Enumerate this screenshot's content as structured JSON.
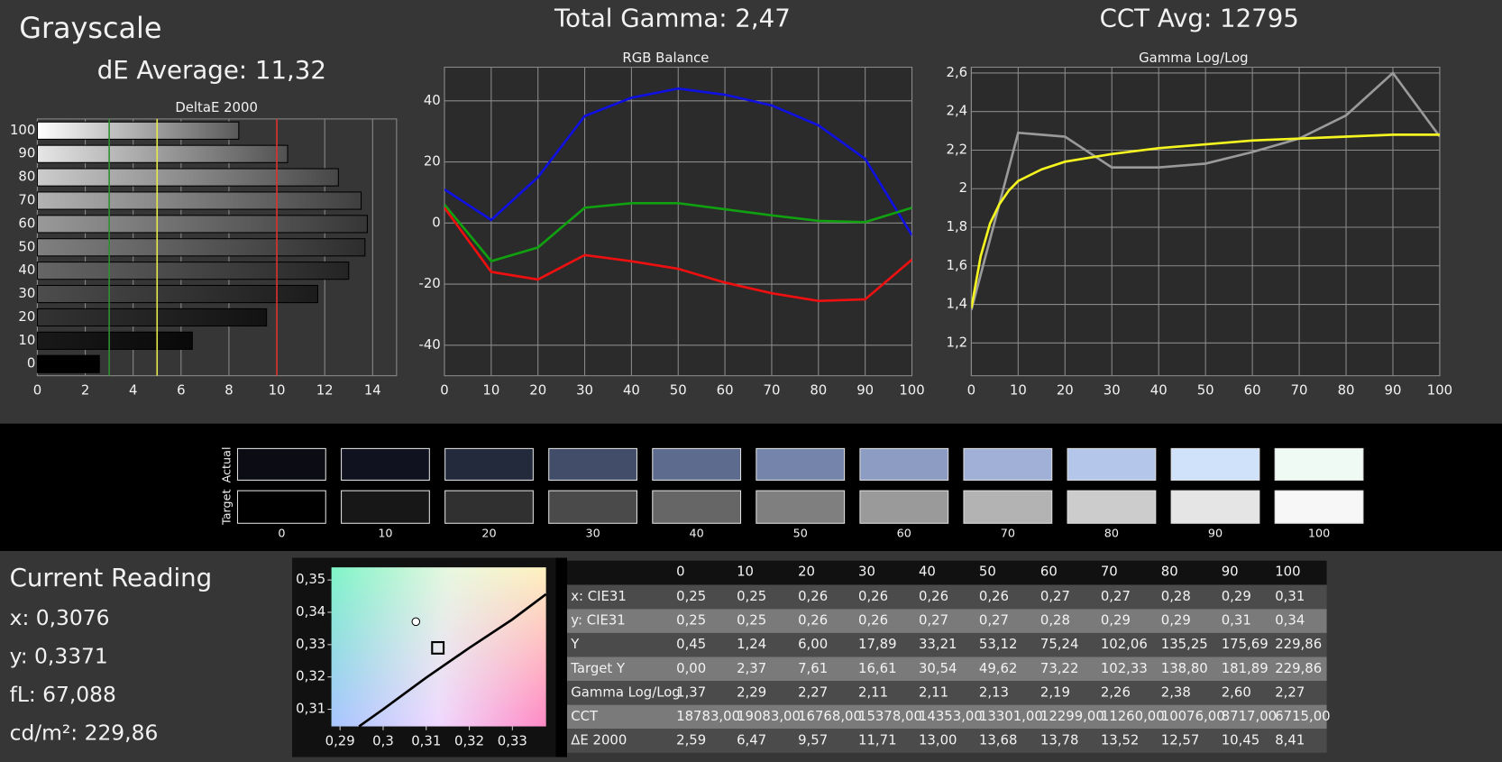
{
  "header": {
    "title": "Grayscale",
    "de_average": "dE Average: 11,32",
    "total_gamma": "Total Gamma: 2,47",
    "cct_avg": "CCT Avg: 12795"
  },
  "deltae_chart": {
    "type": "bar",
    "title": "DeltaE 2000",
    "categories": [
      "100",
      "90",
      "80",
      "70",
      "60",
      "50",
      "40",
      "30",
      "20",
      "10",
      "0"
    ],
    "values": [
      8.41,
      10.45,
      12.57,
      13.52,
      13.78,
      13.68,
      13.0,
      11.71,
      9.57,
      6.47,
      2.59
    ],
    "xlim": [
      0,
      15
    ],
    "xticks": [
      0,
      2,
      4,
      6,
      8,
      10,
      12,
      14
    ],
    "grid": true,
    "thresholds": [
      {
        "value": 3,
        "color": "#2f8f2f"
      },
      {
        "value": 5,
        "color": "#e8e84a"
      },
      {
        "value": 10,
        "color": "#e03030"
      }
    ]
  },
  "rgb_chart": {
    "type": "line",
    "title": "RGB Balance",
    "x": [
      0,
      10,
      20,
      30,
      40,
      50,
      60,
      70,
      80,
      90,
      100
    ],
    "series": [
      {
        "color": "#1010e0",
        "values": [
          11,
          1,
          15,
          35,
          41,
          44,
          42,
          38.5,
          32,
          21,
          -4
        ]
      },
      {
        "color": "#10a010",
        "values": [
          6,
          -12.5,
          -8,
          5,
          6.5,
          6.5,
          4.5,
          2.5,
          0.7,
          0.3,
          5
        ]
      },
      {
        "color": "#ee1010",
        "values": [
          5,
          -16,
          -18.5,
          -10.5,
          -12.5,
          -15,
          -19.5,
          -23,
          -25.5,
          -25,
          -12
        ]
      }
    ],
    "xlim": [
      0,
      100
    ],
    "ylim": [
      -50,
      51
    ],
    "xticks": [
      0,
      10,
      20,
      30,
      40,
      50,
      60,
      70,
      80,
      90,
      100
    ],
    "yticks": [
      -40,
      -20,
      0,
      20,
      40
    ],
    "grid": true
  },
  "gamma_chart": {
    "type": "line",
    "title": "Gamma Log/Log",
    "series": [
      {
        "color": "#9a9a9a",
        "x": [
          0,
          10,
          20,
          30,
          40,
          50,
          60,
          70,
          80,
          90,
          100
        ],
        "values": [
          1.37,
          2.29,
          2.27,
          2.11,
          2.11,
          2.13,
          2.19,
          2.26,
          2.38,
          2.6,
          2.27
        ]
      },
      {
        "color": "#f5f520",
        "x": [
          0,
          2,
          4,
          6,
          8,
          10,
          15,
          20,
          30,
          40,
          50,
          60,
          70,
          80,
          90,
          100
        ],
        "values": [
          1.38,
          1.65,
          1.82,
          1.92,
          1.99,
          2.04,
          2.1,
          2.14,
          2.18,
          2.21,
          2.23,
          2.25,
          2.26,
          2.27,
          2.28,
          2.28
        ]
      }
    ],
    "xlim": [
      0,
      100
    ],
    "ylim": [
      1.03,
      2.63
    ],
    "xticks": [
      0,
      10,
      20,
      30,
      40,
      50,
      60,
      70,
      80,
      90,
      100
    ],
    "yticks": [
      {
        "value": 1.2,
        "label": "1,2"
      },
      {
        "value": 1.4,
        "label": "1,4"
      },
      {
        "value": 1.6,
        "label": "1,6"
      },
      {
        "value": 1.8,
        "label": "1,8"
      },
      2,
      {
        "value": 2.2,
        "label": "2,2"
      },
      {
        "value": 2.4,
        "label": "2,4"
      },
      {
        "value": 2.6,
        "label": "2,6"
      }
    ],
    "grid": true
  },
  "swatches": {
    "row_labels": [
      "Actual",
      "Target"
    ],
    "columns": [
      "0",
      "10",
      "20",
      "30",
      "40",
      "50",
      "60",
      "70",
      "80",
      "90",
      "100"
    ],
    "actual_colors": [
      "#0b0c14",
      "#10131f",
      "#232a3c",
      "#414d69",
      "#5d6b8f",
      "#7484aa",
      "#8c9cc2",
      "#a0b0d6",
      "#b4c6ea",
      "#cfe2fa",
      "#eefaf3"
    ],
    "target_colors": [
      "#000000",
      "#171717",
      "#303030",
      "#4a4a4a",
      "#666666",
      "#7f7f7f",
      "#9a9a9a",
      "#b3b3b3",
      "#cccccc",
      "#e5e5e5",
      "#f7f7f7"
    ]
  },
  "current_reading": {
    "title": "Current Reading",
    "lines": [
      "x: 0,3076",
      "y: 0,3371",
      "fL: 67,088",
      "cd/m²: 229,86"
    ]
  },
  "cie_chart": {
    "type": "scatter",
    "xlim": [
      0.288,
      0.3378
    ],
    "ylim": [
      0.3047,
      0.3539
    ],
    "xticks": [
      {
        "value": 0.29,
        "label": "0,29"
      },
      {
        "value": 0.3,
        "label": "0,3"
      },
      {
        "value": 0.31,
        "label": "0,31"
      },
      {
        "value": 0.32,
        "label": "0,32"
      },
      {
        "value": 0.33,
        "label": "0,33"
      }
    ],
    "yticks": [
      {
        "value": 0.31,
        "label": "0,31"
      },
      {
        "value": 0.32,
        "label": "0,32"
      },
      {
        "value": 0.33,
        "label": "0,33"
      },
      {
        "value": 0.34,
        "label": "0,34"
      },
      {
        "value": 0.35,
        "label": "0,35"
      }
    ],
    "measured": {
      "x": 0.3076,
      "y": 0.3371
    },
    "target": {
      "x": 0.3127,
      "y": 0.329
    },
    "locus": {
      "x": [
        0.2944,
        0.3,
        0.31,
        0.32,
        0.33,
        0.3378
      ],
      "y": [
        0.3047,
        0.31,
        0.3198,
        0.329,
        0.3378,
        0.3456
      ]
    }
  },
  "table": {
    "columns": [
      "0",
      "10",
      "20",
      "30",
      "40",
      "50",
      "60",
      "70",
      "80",
      "90",
      "100"
    ],
    "rows": [
      {
        "label": "x: CIE31",
        "cells": [
          "0,25",
          "0,25",
          "0,26",
          "0,26",
          "0,26",
          "0,26",
          "0,27",
          "0,27",
          "0,28",
          "0,29",
          "0,31"
        ]
      },
      {
        "label": "y: CIE31",
        "cells": [
          "0,25",
          "0,25",
          "0,26",
          "0,26",
          "0,27",
          "0,27",
          "0,28",
          "0,29",
          "0,29",
          "0,31",
          "0,34"
        ]
      },
      {
        "label": "Y",
        "cells": [
          "0,45",
          "1,24",
          "6,00",
          "17,89",
          "33,21",
          "53,12",
          "75,24",
          "102,06",
          "135,25",
          "175,69",
          "229,86"
        ]
      },
      {
        "label": "Target Y",
        "cells": [
          "0,00",
          "2,37",
          "7,61",
          "16,61",
          "30,54",
          "49,62",
          "73,22",
          "102,33",
          "138,80",
          "181,89",
          "229,86"
        ]
      },
      {
        "label": "Gamma Log/Log",
        "cells": [
          "1,37",
          "2,29",
          "2,27",
          "2,11",
          "2,11",
          "2,13",
          "2,19",
          "2,26",
          "2,38",
          "2,60",
          "2,27"
        ]
      },
      {
        "label": "CCT",
        "cells": [
          "18783,00",
          "19083,00",
          "16768,00",
          "15378,00",
          "14353,00",
          "13301,00",
          "12299,00",
          "11260,00",
          "10076,00",
          "8717,00",
          "6715,00"
        ]
      },
      {
        "label": "ΔE 2000",
        "cells": [
          "2,59",
          "6,47",
          "9,57",
          "11,71",
          "13,00",
          "13,68",
          "13,78",
          "13,52",
          "12,57",
          "10,45",
          "8,41"
        ]
      }
    ]
  }
}
